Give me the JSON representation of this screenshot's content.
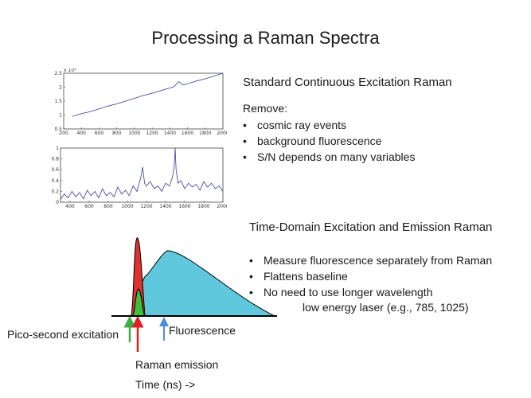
{
  "slide": {
    "title": "Processing a Raman Spectra"
  },
  "continuous": {
    "heading": "Standard Continuous Excitation Raman",
    "remove_label": "Remove:",
    "bullets": [
      "cosmic ray events",
      "background fluorescence",
      "S/N depends on many variables"
    ]
  },
  "time_domain": {
    "heading": "Time-Domain Excitation and Emission Raman",
    "bullets": [
      "Measure fluorescence separately from Raman",
      "Flattens baseline",
      "No need to use longer wavelength"
    ],
    "bullet_continuation": "low energy laser (e.g., 785, 1025)"
  },
  "pulse_labels": {
    "excitation": "Pico-second excitation",
    "raman": "Raman emission",
    "fluorescence": "Fluorescence",
    "time_axis": "Time (ns) ->"
  },
  "colors": {
    "raman_fill": "#e03131",
    "excitation_fill": "#3cc13c",
    "fluorescence_fill": "#5fc8dc",
    "excitation_arrow": "#3cb043",
    "raman_arrow": "#e02020",
    "fluorescence_arrow": "#4a90d9",
    "spectrum_line": "#3a3aa0"
  },
  "chart_data": [
    {
      "type": "line",
      "x_ticks": [
        "200",
        "400",
        "600",
        "800",
        "1000",
        "1200",
        "1400",
        "1600",
        "1800",
        "2000"
      ],
      "y_ticks": [
        "0.5",
        "1",
        "1.5",
        "2",
        "2.5"
      ],
      "y_exponent": "x 10⁴",
      "xlim": [
        200,
        2000
      ],
      "ylim": [
        0.5,
        2.5
      ],
      "series": [
        {
          "x": [
            300,
            400,
            500,
            600,
            700,
            800,
            900,
            1000,
            1100,
            1200,
            1300,
            1400,
            1450,
            1500,
            1550,
            1600,
            1700,
            1800,
            1900,
            2000
          ],
          "values": [
            0.95,
            1.05,
            1.12,
            1.22,
            1.32,
            1.4,
            1.5,
            1.6,
            1.7,
            1.78,
            1.88,
            1.97,
            2.02,
            2.2,
            2.08,
            2.12,
            2.22,
            2.3,
            2.4,
            2.5
          ]
        }
      ]
    },
    {
      "type": "line",
      "x_ticks": [
        "400",
        "600",
        "800",
        "1000",
        "1200",
        "1400",
        "1600",
        "1800",
        "2000"
      ],
      "y_ticks": [
        "0",
        "0.2",
        "0.4",
        "0.6",
        "0.8",
        "1"
      ],
      "xlim": [
        300,
        2000
      ],
      "ylim": [
        0,
        1
      ],
      "series": [
        {
          "x": [
            300,
            340,
            380,
            420,
            460,
            500,
            540,
            580,
            620,
            660,
            700,
            740,
            780,
            820,
            860,
            900,
            940,
            980,
            1020,
            1060,
            1100,
            1140,
            1160,
            1180,
            1200,
            1240,
            1280,
            1320,
            1360,
            1400,
            1440,
            1470,
            1490,
            1500,
            1510,
            1530,
            1560,
            1600,
            1640,
            1680,
            1720,
            1760,
            1800,
            1840,
            1880,
            1920,
            1960,
            2000
          ],
          "values": [
            0.05,
            0.15,
            0.08,
            0.2,
            0.1,
            0.18,
            0.06,
            0.22,
            0.12,
            0.2,
            0.08,
            0.25,
            0.12,
            0.18,
            0.1,
            0.28,
            0.15,
            0.22,
            0.12,
            0.3,
            0.2,
            0.45,
            0.65,
            0.35,
            0.3,
            0.38,
            0.25,
            0.3,
            0.2,
            0.35,
            0.3,
            0.45,
            0.65,
            1.0,
            0.6,
            0.35,
            0.4,
            0.25,
            0.35,
            0.28,
            0.33,
            0.22,
            0.38,
            0.28,
            0.35,
            0.25,
            0.3,
            0.2
          ]
        }
      ]
    }
  ]
}
